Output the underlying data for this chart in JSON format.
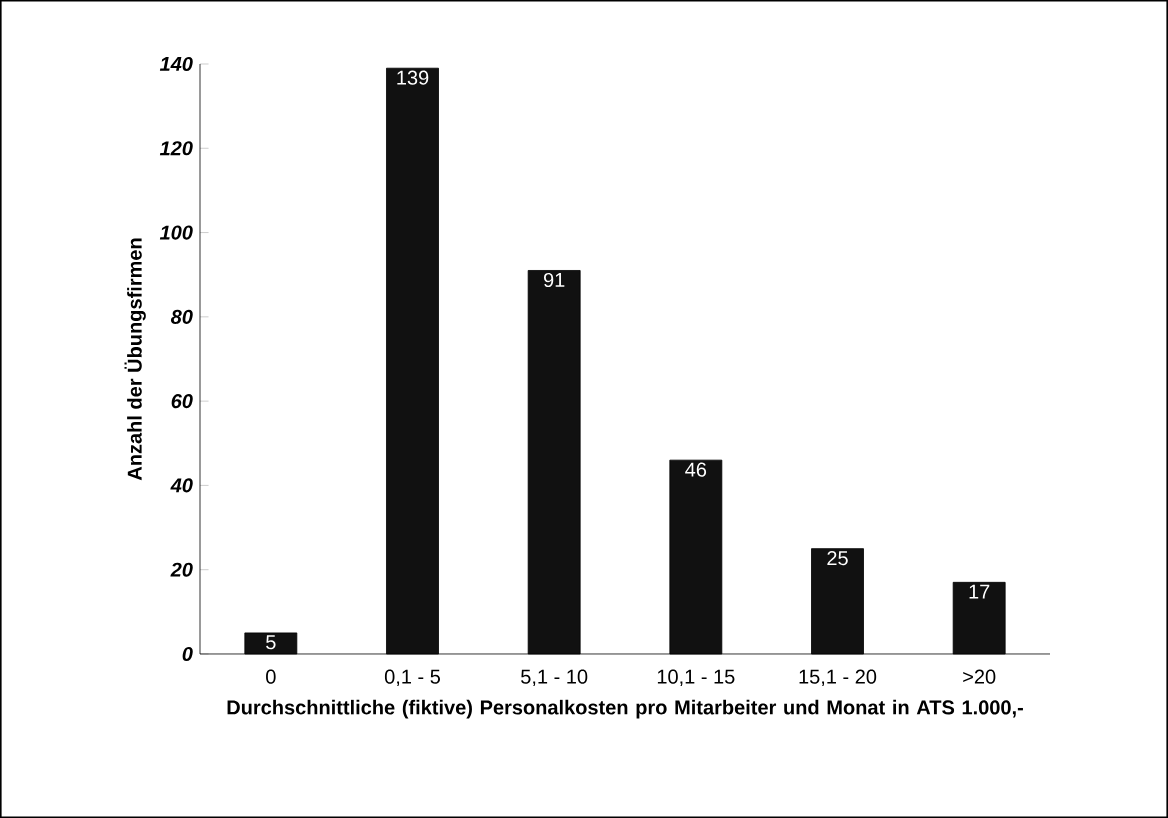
{
  "chart_data": {
    "type": "bar",
    "xlabel": "Durchschnittliche (fiktive) Personalkosten pro Mitarbeiter und Monat in ATS 1.000,-",
    "ylabel": "Anzahl der Übungsfirmen",
    "categories": [
      "0",
      "0,1 - 5",
      "5,1 - 10",
      "10,1 - 15",
      "15,1 - 20",
      ">20"
    ],
    "values": [
      5,
      139,
      91,
      46,
      25,
      17
    ],
    "color": "#111111",
    "ylim": [
      0,
      140
    ],
    "yticks": [
      0,
      20,
      40,
      60,
      80,
      100,
      120,
      140
    ],
    "grid": false,
    "data_labels": true
  }
}
